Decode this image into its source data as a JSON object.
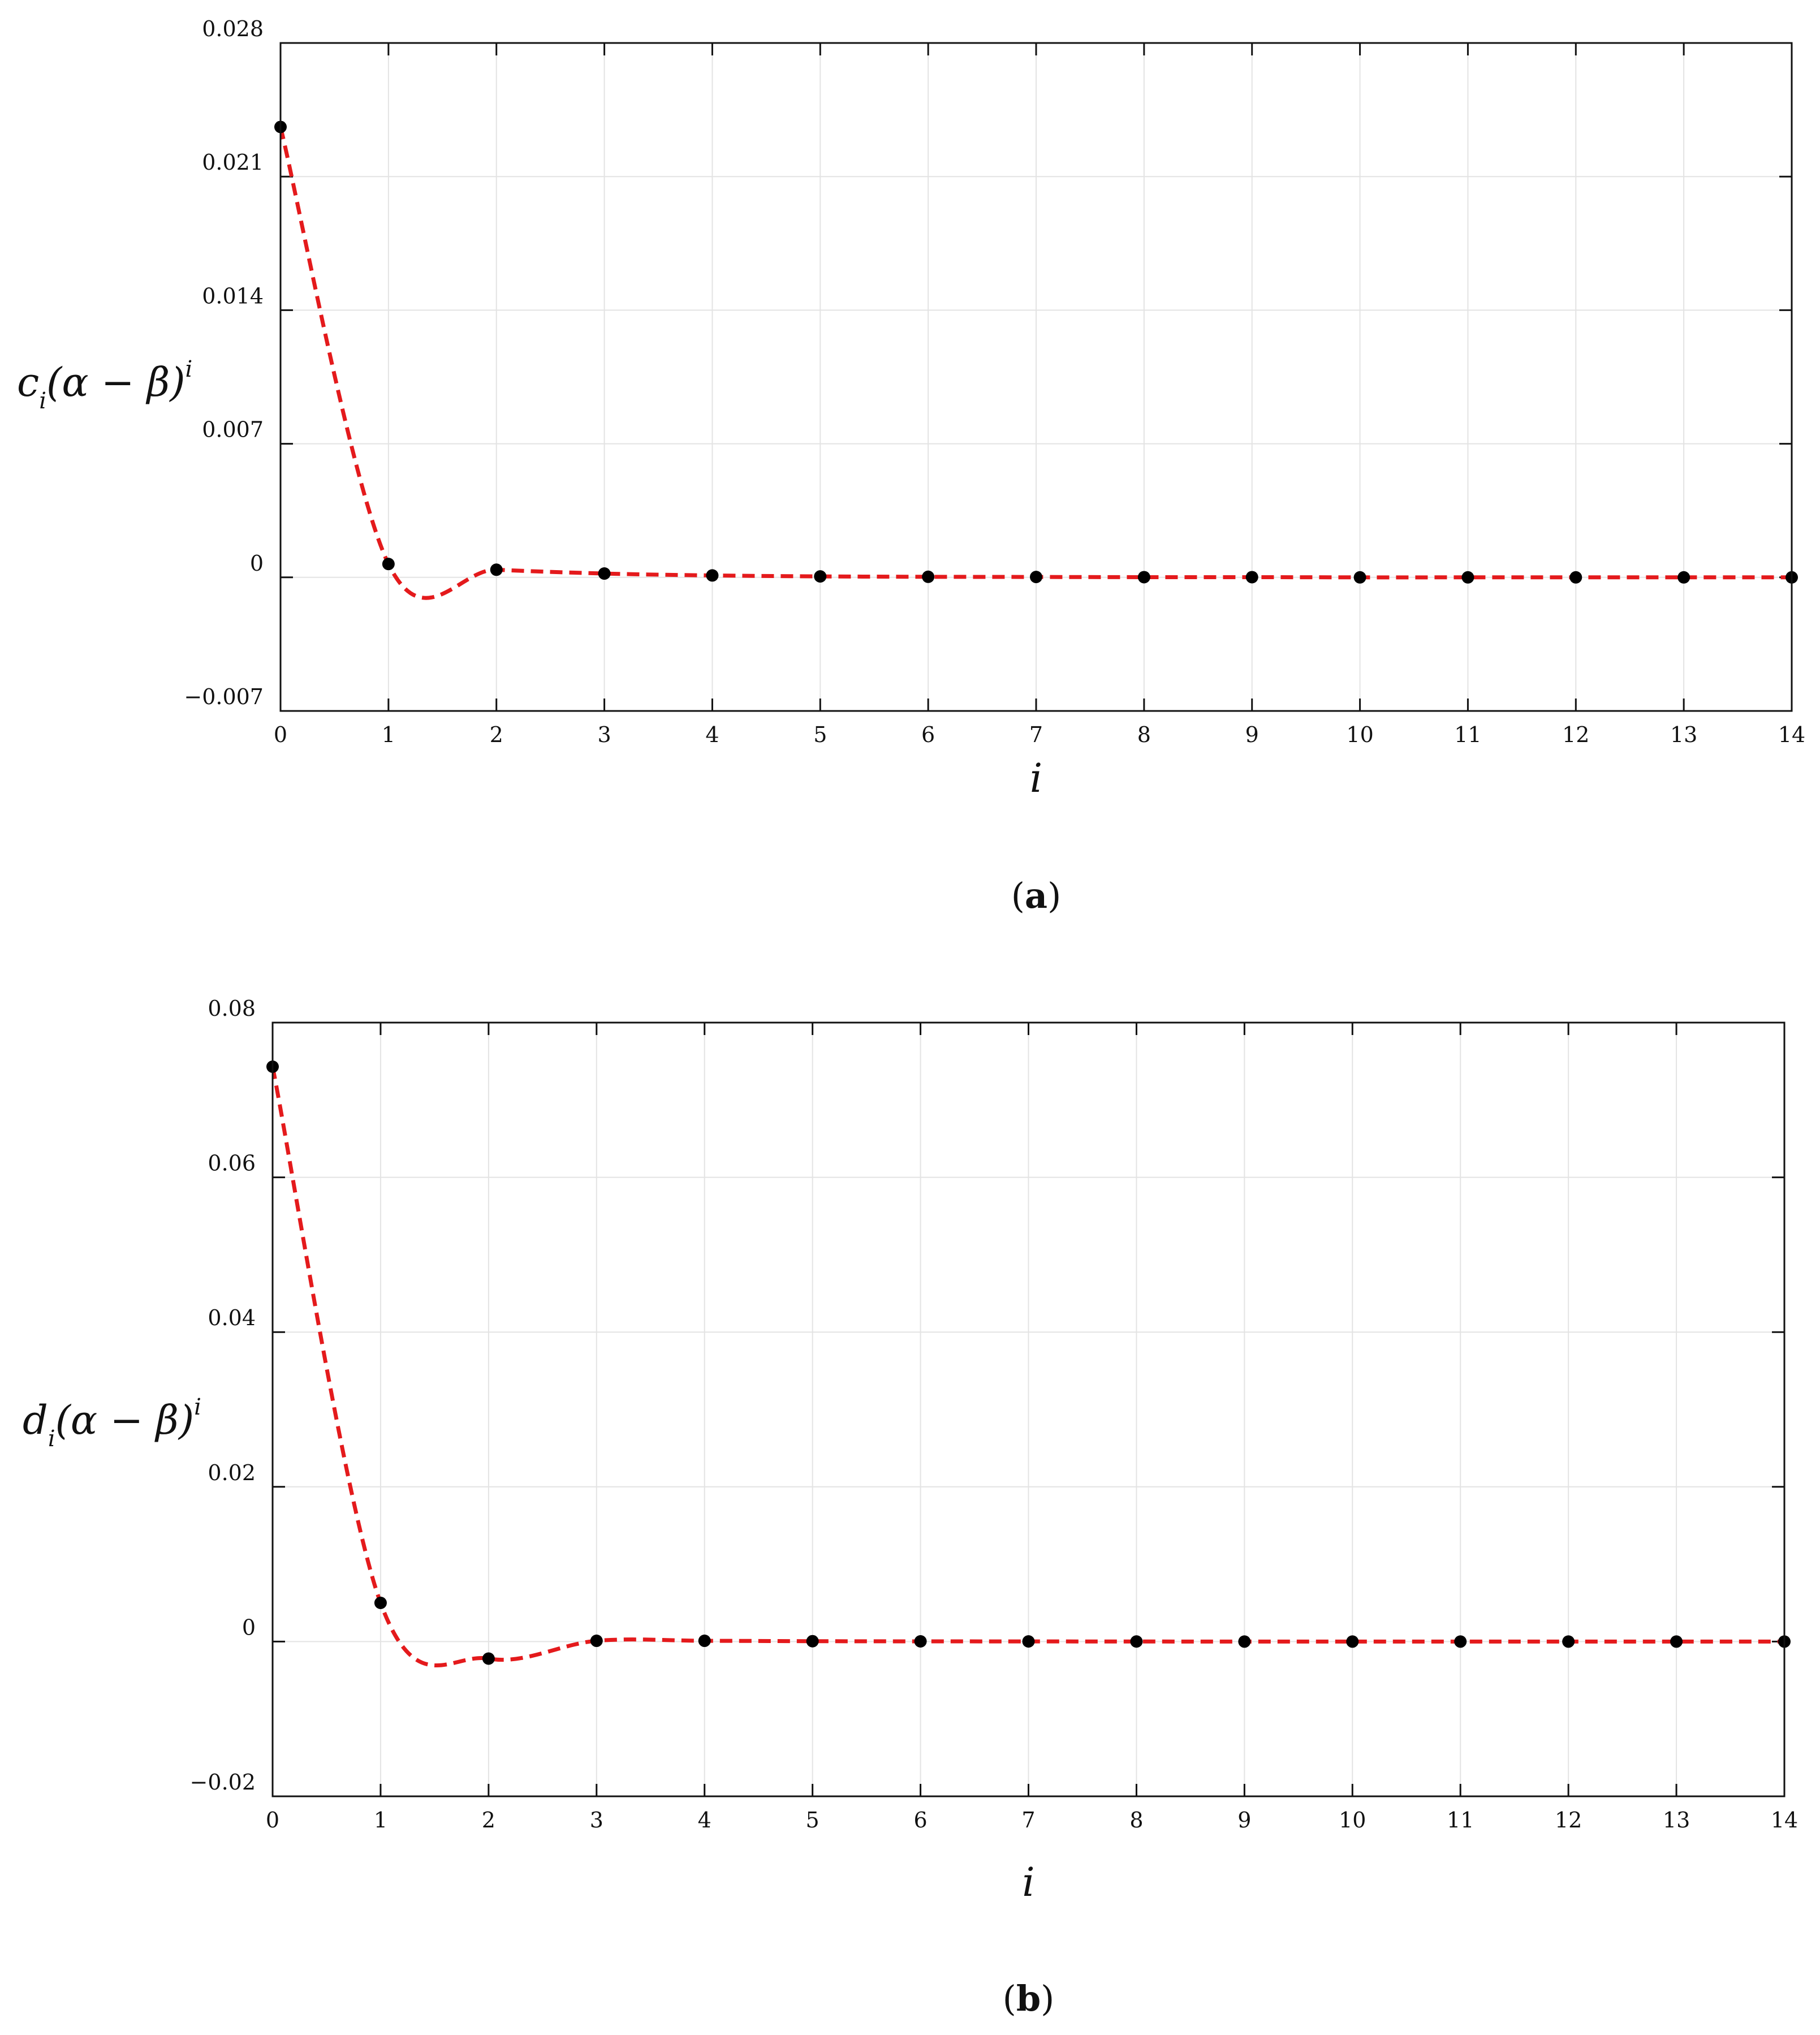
{
  "panels": [
    {
      "panel_label": "a",
      "ylabel": {
        "base": "c",
        "sub": "i",
        "mid": "(α − β)",
        "sup": "i"
      },
      "xlabel": "i"
    },
    {
      "panel_label": "b",
      "ylabel": {
        "base": "d",
        "sub": "i",
        "mid": "(α − β)",
        "sup": "i"
      },
      "xlabel": "i"
    }
  ],
  "chart_data": [
    {
      "type": "scatter",
      "x": [
        0,
        1,
        2,
        3,
        4,
        5,
        6,
        7,
        8,
        9,
        10,
        11,
        12,
        13,
        14
      ],
      "values": [
        0.0236,
        0.0007,
        0.0004,
        0.0002,
        0.0001,
        5e-05,
        3e-05,
        2e-05,
        1e-05,
        1e-05,
        0,
        0,
        0,
        0,
        0
      ],
      "xlim": [
        0,
        14
      ],
      "ylim": [
        -0.007,
        0.028
      ],
      "xticks": [
        "0",
        "1",
        "2",
        "3",
        "4",
        "5",
        "6",
        "7",
        "8",
        "9",
        "10",
        "11",
        "12",
        "13",
        "14"
      ],
      "yticks": [
        {
          "value": 0.028,
          "label": "0.028"
        },
        {
          "value": 0.021,
          "label": "0.021"
        },
        {
          "value": 0.014,
          "label": "0.014"
        },
        {
          "value": 0.007,
          "label": "0.007"
        },
        {
          "value": 0,
          "label": "0"
        },
        {
          "value": -0.007,
          "label": "−0.007"
        }
      ],
      "grid": true,
      "marker_color": "#000000",
      "curve_color": "#e41a1c",
      "curve_style": "dashed"
    },
    {
      "type": "scatter",
      "x": [
        0,
        1,
        2,
        3,
        4,
        5,
        6,
        7,
        8,
        9,
        10,
        11,
        12,
        13,
        14
      ],
      "values": [
        0.0743,
        0.005,
        -0.0022,
        0.0001,
        0.0001,
        5e-05,
        3e-05,
        2e-05,
        1e-05,
        0,
        0,
        0,
        0,
        0,
        0
      ],
      "xlim": [
        0,
        14
      ],
      "ylim": [
        -0.02,
        0.08
      ],
      "xticks": [
        "0",
        "1",
        "2",
        "3",
        "4",
        "5",
        "6",
        "7",
        "8",
        "9",
        "10",
        "11",
        "12",
        "13",
        "14"
      ],
      "yticks": [
        {
          "value": 0.08,
          "label": "0.08"
        },
        {
          "value": 0.06,
          "label": "0.06"
        },
        {
          "value": 0.04,
          "label": "0.04"
        },
        {
          "value": 0.02,
          "label": "0.02"
        },
        {
          "value": 0,
          "label": "0"
        },
        {
          "value": -0.02,
          "label": "−0.02"
        }
      ],
      "grid": true,
      "marker_color": "#000000",
      "curve_color": "#e41a1c",
      "curve_style": "dashed"
    }
  ]
}
